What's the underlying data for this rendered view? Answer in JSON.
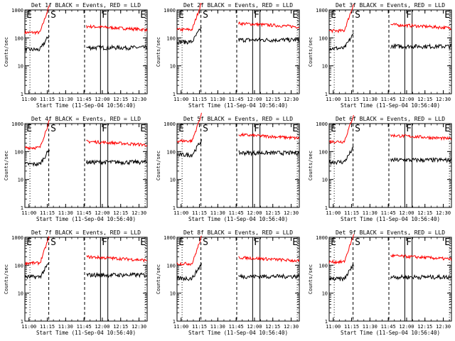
{
  "chart_data": [
    {
      "title": "Det 1f BLACK = Events, RED = LLD",
      "ylabel": "Counts/sec",
      "xlabel": "Start Time (11-Sep-04 10:56:40)",
      "red_level": 260,
      "black_level": 45
    },
    {
      "title": "Det 2f BLACK = Events, RED = LLD",
      "ylabel": "Counts/sec",
      "xlabel": "Start Time (11-Sep-04 10:56:40)",
      "red_level": 330,
      "black_level": 85
    },
    {
      "title": "Det 3f BLACK = Events, RED = LLD",
      "ylabel": "Counts/sec",
      "xlabel": "Start Time (11-Sep-04 10:56:40)",
      "red_level": 300,
      "black_level": 50
    },
    {
      "title": "Det 4f BLACK = Events, RED = LLD",
      "ylabel": "Counts/sec",
      "xlabel": "Start Time (11-Sep-04 10:56:40)",
      "red_level": 230,
      "black_level": 42
    },
    {
      "title": "Det 5f BLACK = Events, RED = LLD",
      "ylabel": "Counts/sec",
      "xlabel": "Start Time (11-Sep-04 10:56:40)",
      "red_level": 400,
      "black_level": 90
    },
    {
      "title": "Det 6f BLACK = Events, RED = LLD",
      "ylabel": "Counts/sec",
      "xlabel": "Start Time (11-Sep-04 10:56:40)",
      "red_level": 380,
      "black_level": 50
    },
    {
      "title": "Det 7f BLACK = Events, RED = LLD",
      "ylabel": "Counts/sec",
      "xlabel": "Start Time (11-Sep-04 10:56:40)",
      "red_level": 200,
      "black_level": 45
    },
    {
      "title": "Det 8f BLACK = Events, RED = LLD",
      "ylabel": "Counts/sec",
      "xlabel": "Start Time (11-Sep-04 10:56:40)",
      "red_level": 190,
      "black_level": 40
    },
    {
      "title": "Det 9f BLACK = Events, RED = LLD",
      "ylabel": "Counts/sec",
      "xlabel": "Start Time (11-Sep-04 10:56:40)",
      "red_level": 220,
      "black_level": 38
    }
  ],
  "common": {
    "type": "line",
    "yscale": "log",
    "ylim": [
      1,
      1000
    ],
    "yticks": [
      "1",
      "10",
      "100",
      "1000"
    ],
    "xtick_labels": [
      "11:00",
      "11:15",
      "11:30",
      "11:45",
      "12:00",
      "12:15",
      "12:30"
    ],
    "xlim": [
      "10:56:40",
      "12:36:40"
    ],
    "markers": [
      "E",
      "S",
      "F",
      "E"
    ],
    "series_colors": {
      "events": "#000000",
      "lld": "#ff0000"
    },
    "gap": [
      "11:17",
      "11:47"
    ]
  }
}
